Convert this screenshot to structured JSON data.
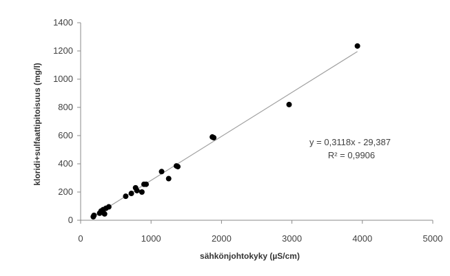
{
  "chart_data": {
    "type": "scatter",
    "xlabel": "sähkönjohtokyky (µS/cm)",
    "ylabel": "kloridi+sulfaattipitoisuus (mg/l)",
    "xlim": [
      0,
      5000
    ],
    "ylim": [
      0,
      1400
    ],
    "x_ticks": [
      0,
      1000,
      2000,
      3000,
      4000,
      5000
    ],
    "y_ticks": [
      0,
      200,
      400,
      600,
      800,
      1000,
      1200,
      1400
    ],
    "x_tick_labels": [
      "0",
      "1000",
      "2000",
      "3000",
      "4000",
      "5000"
    ],
    "y_tick_labels": [
      "0",
      "200",
      "400",
      "600",
      "800",
      "1000",
      "1200",
      "1400"
    ],
    "grid": false,
    "legend": "none",
    "series": [
      {
        "marker_color": "#000000",
        "points": [
          {
            "x": 180,
            "y": 25
          },
          {
            "x": 190,
            "y": 35
          },
          {
            "x": 270,
            "y": 50
          },
          {
            "x": 290,
            "y": 65
          },
          {
            "x": 320,
            "y": 75
          },
          {
            "x": 340,
            "y": 45
          },
          {
            "x": 360,
            "y": 85
          },
          {
            "x": 400,
            "y": 95
          },
          {
            "x": 640,
            "y": 170
          },
          {
            "x": 720,
            "y": 190
          },
          {
            "x": 780,
            "y": 230
          },
          {
            "x": 800,
            "y": 210
          },
          {
            "x": 870,
            "y": 200
          },
          {
            "x": 900,
            "y": 255
          },
          {
            "x": 930,
            "y": 255
          },
          {
            "x": 1150,
            "y": 345
          },
          {
            "x": 1250,
            "y": 295
          },
          {
            "x": 1360,
            "y": 385
          },
          {
            "x": 1380,
            "y": 380
          },
          {
            "x": 1870,
            "y": 590
          },
          {
            "x": 1890,
            "y": 585
          },
          {
            "x": 2960,
            "y": 820
          },
          {
            "x": 3930,
            "y": 1235
          }
        ]
      }
    ],
    "trendline": {
      "slope": 0.3118,
      "intercept": -29.387,
      "x_range": [
        150,
        3930
      ],
      "color": "#a0a0a0"
    },
    "annotations": {
      "equation": "y = 0,3118x - 29,387",
      "r2_label": "R² = 0,9906"
    }
  }
}
